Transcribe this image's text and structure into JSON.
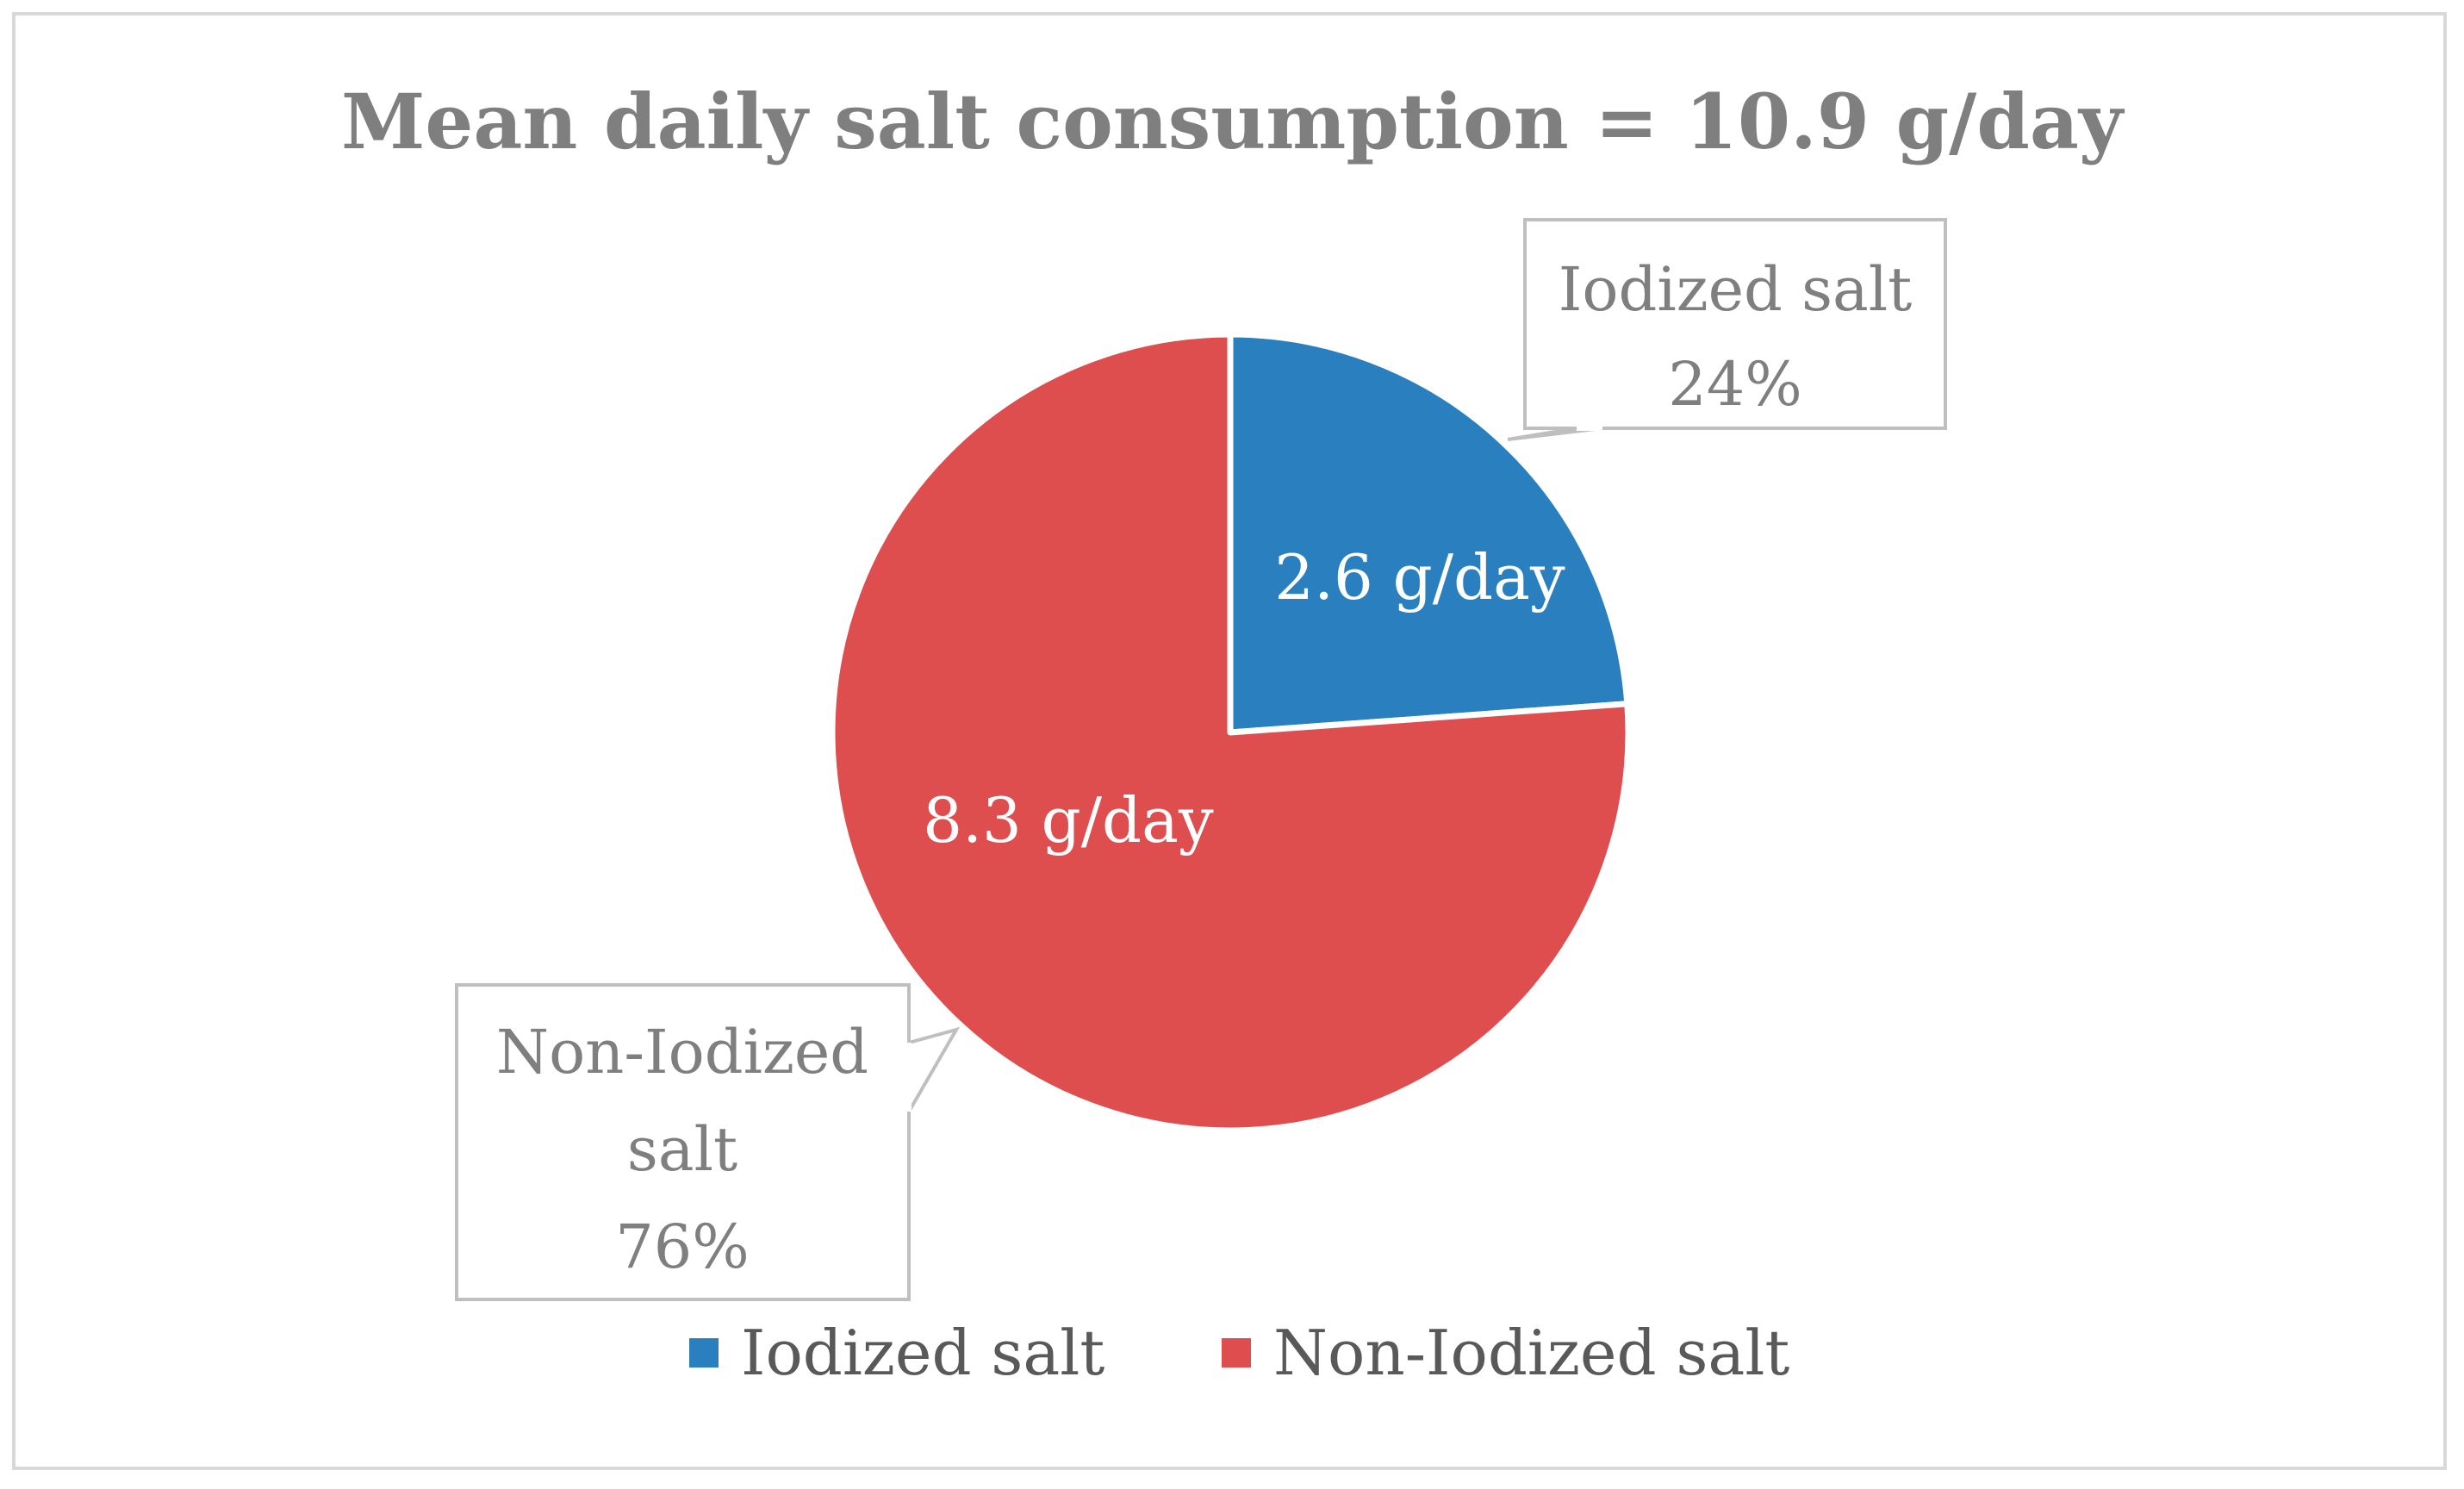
{
  "chart_data": {
    "type": "pie",
    "title": "Mean daily salt consumption = 10.9 g/day",
    "slices": [
      {
        "name": "Iodized salt",
        "value": 2.6,
        "value_label": "2.6 g/day",
        "percent_label": "24%",
        "callout_lines": [
          "Iodized salt",
          "24%"
        ],
        "color": "#2A7FBF"
      },
      {
        "name": "Non-Iodized salt",
        "value": 8.3,
        "value_label": "8.3 g/day",
        "percent_label": "76%",
        "callout_lines": [
          "Non-Iodized",
          "salt",
          "76%"
        ],
        "color": "#DE4E4E"
      }
    ],
    "legend": {
      "placement": "bottom",
      "entries": [
        "Iodized salt",
        "Non-Iodized salt"
      ]
    },
    "start_angle": "12 o'clock",
    "direction": "clockwise"
  },
  "colors": {
    "frame_border": "#d9d9d9",
    "text_gray": "#7f7f7f",
    "legend_text": "#595959",
    "slice_border": "#ffffff"
  }
}
